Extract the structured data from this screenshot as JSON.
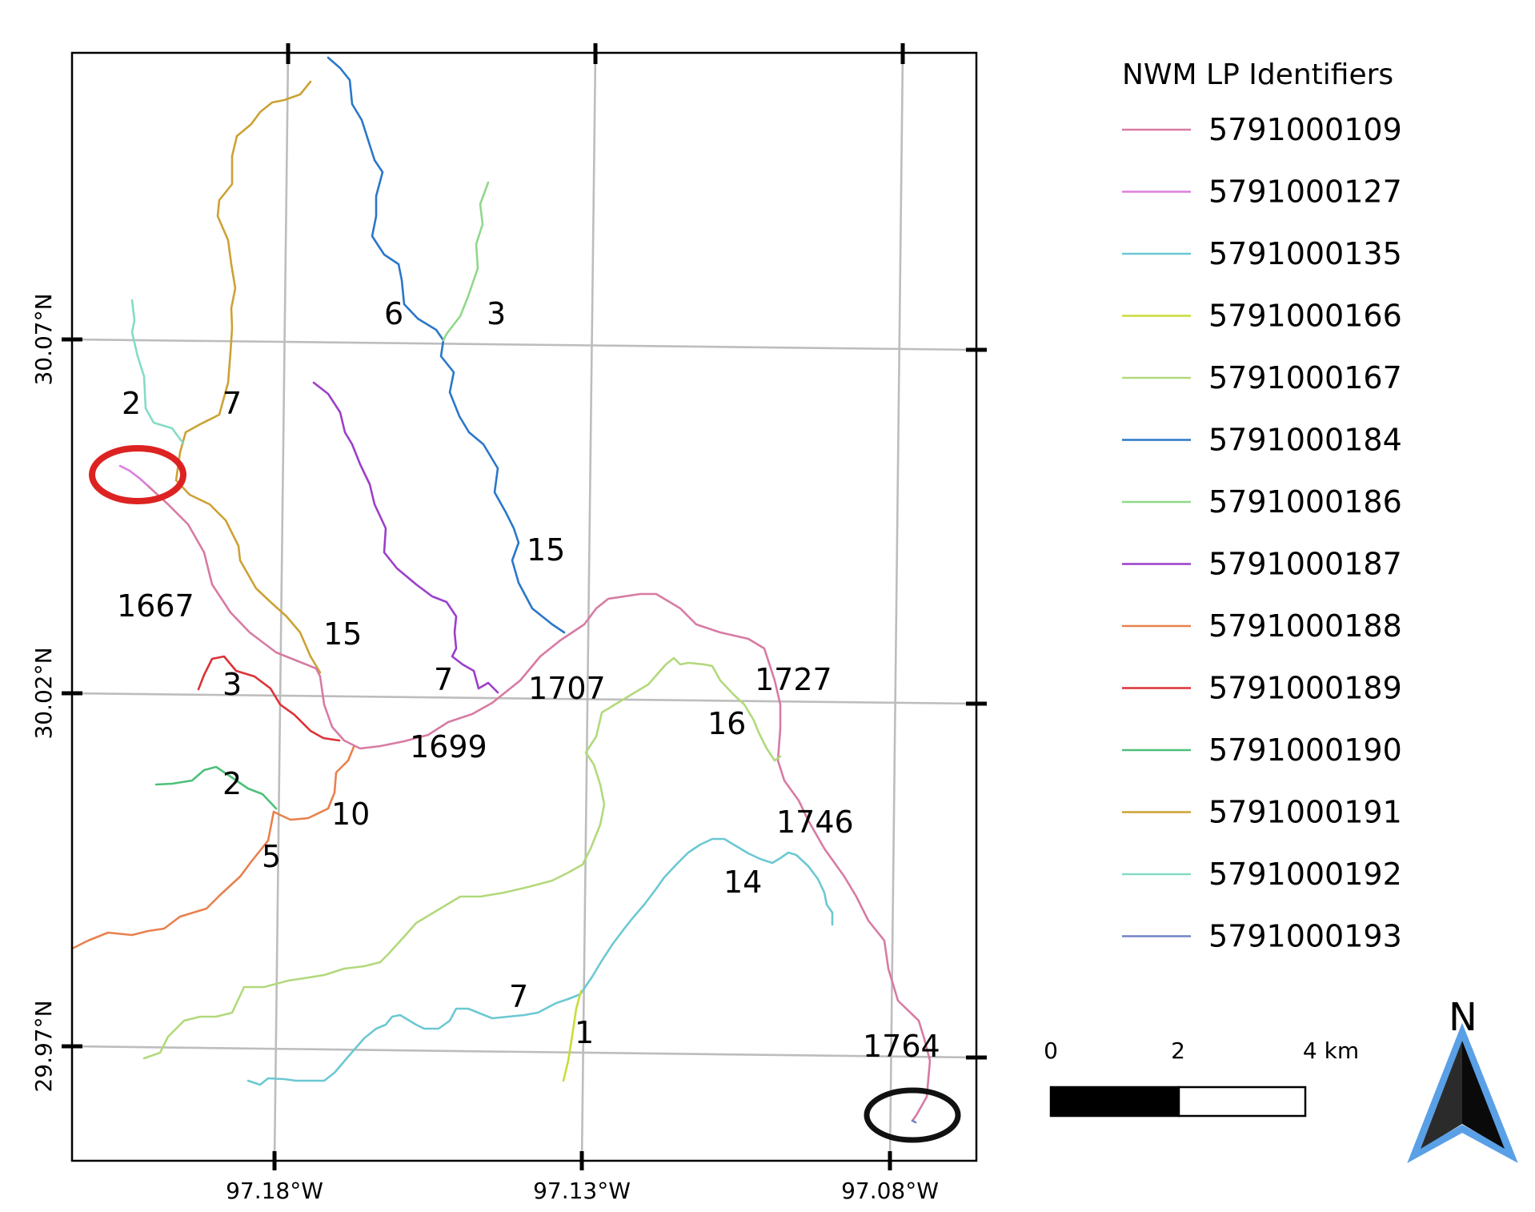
{
  "legend": {
    "title": "NWM LP Identifiers",
    "items": [
      {
        "id": "5791000109",
        "color": "#d77ba3"
      },
      {
        "id": "5791000127",
        "color": "#db7fdd"
      },
      {
        "id": "5791000135",
        "color": "#6cc8d3"
      },
      {
        "id": "5791000166",
        "color": "#c9dc3a"
      },
      {
        "id": "5791000167",
        "color": "#b2d97c"
      },
      {
        "id": "5791000184",
        "color": "#2a77c9"
      },
      {
        "id": "5791000186",
        "color": "#8fd88b"
      },
      {
        "id": "5791000187",
        "color": "#9b3fca"
      },
      {
        "id": "5791000188",
        "color": "#e8814d"
      },
      {
        "id": "5791000189",
        "color": "#dc3236"
      },
      {
        "id": "5791000190",
        "color": "#4dc07a"
      },
      {
        "id": "5791000191",
        "color": "#cca234"
      },
      {
        "id": "5791000192",
        "color": "#84dbc6"
      },
      {
        "id": "5791000193",
        "color": "#7384c6"
      }
    ]
  },
  "axes": {
    "x_ticks": [
      "97.18°W",
      "97.13°W",
      "97.08°W"
    ],
    "y_ticks": [
      "30.07°N",
      "30.02°N",
      "29.97°N"
    ]
  },
  "reach_labels": [
    "2",
    "7",
    "6",
    "3",
    "15",
    "1667",
    "15",
    "3",
    "7",
    "1707",
    "1727",
    "16",
    "1699",
    "2",
    "10",
    "5",
    "1746",
    "14",
    "7",
    "1",
    "1764"
  ],
  "scale_bar": {
    "labels": [
      "0",
      "2",
      "4 km"
    ]
  },
  "north_arrow": {
    "label": "N",
    "color": "#5aa0e6"
  },
  "markers": [
    {
      "name": "upstream-marker",
      "color": "#dd2222"
    },
    {
      "name": "downstream-marker",
      "color": "#111111"
    }
  ]
}
